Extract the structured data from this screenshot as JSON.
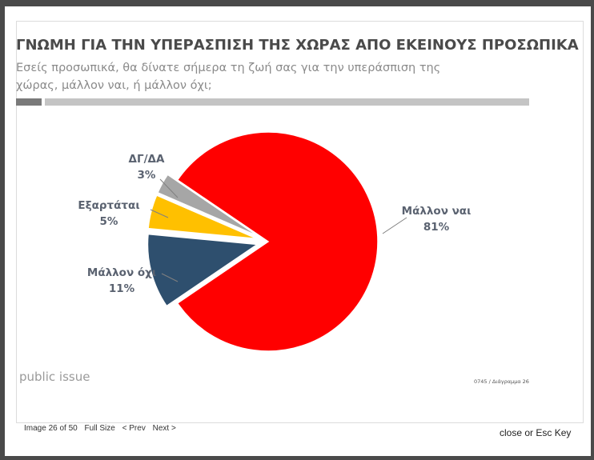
{
  "slide": {
    "title": "ΓΝΩΜΗ ΓΙΑ ΤΗΝ ΥΠΕΡΑΣΠΙΣΗ ΤΗΣ ΧΩΡΑΣ ΑΠΟ ΕΚΕΙΝΟΥΣ ΠΡΟΣΩΠΙΚΑ",
    "subtitle": "Εσείς προσωπικά, θα δίνατε σήμερα τη ζωή σας για την υπεράσπιση της χώρας, μάλλον ναι, ή μάλλον όχι;",
    "brand": "public issue",
    "code": "0745 / Διάγραμμα 26"
  },
  "chart_data": {
    "type": "pie",
    "title": "ΓΝΩΜΗ ΓΙΑ ΤΗΝ ΥΠΕΡΑΣΠΙΣΗ ΤΗΣ ΧΩΡΑΣ ΑΠΟ ΕΚΕΙΝΟΥΣ ΠΡΟΣΩΠΙΚΑ",
    "slices": [
      {
        "label": "Μάλλον ναι",
        "value": 81,
        "value_label": "81%",
        "color": "#ff0000"
      },
      {
        "label": "Μάλλον όχι",
        "value": 11,
        "value_label": "11%",
        "color": "#2e4f6e"
      },
      {
        "label": "Εξαρτάται",
        "value": 5,
        "value_label": "5%",
        "color": "#ffc000"
      },
      {
        "label": "ΔΓ/ΔΑ",
        "value": 3,
        "value_label": "3%",
        "color": "#a6a6a6"
      }
    ]
  },
  "viewer": {
    "image_counter": "Image 26 of 50",
    "full_size": "Full Size",
    "prev": "< Prev",
    "next": "Next >",
    "close": "close",
    "or": "or",
    "esc": "Esc Key"
  }
}
